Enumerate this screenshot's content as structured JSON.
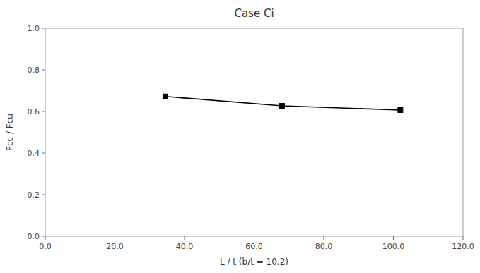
{
  "chart_data": {
    "type": "line",
    "title": "Case Ci",
    "xlabel": "L / t (b/t = 10.2)",
    "ylabel": "Fcc / Fcu",
    "x": [
      34.5,
      68.0,
      102.0
    ],
    "values": [
      0.672,
      0.627,
      0.607
    ],
    "color": "#000000",
    "marker": "square",
    "xlim": [
      0.0,
      120.0
    ],
    "ylim": [
      0.0,
      1.0
    ],
    "xticks": [
      {
        "value": 0.0,
        "label": "0.0"
      },
      {
        "value": 20.0,
        "label": "20.0"
      },
      {
        "value": 40.0,
        "label": "40.0"
      },
      {
        "value": 60.0,
        "label": "60.0"
      },
      {
        "value": 80.0,
        "label": "80.0"
      },
      {
        "value": 100.0,
        "label": "100.0"
      },
      {
        "value": 120.0,
        "label": "120.0"
      }
    ],
    "yticks": [
      {
        "value": 0.0,
        "label": "0.0"
      },
      0.2,
      0.4,
      0.6,
      0.8,
      {
        "value": 1.0,
        "label": "1.0"
      }
    ],
    "grid": false
  }
}
